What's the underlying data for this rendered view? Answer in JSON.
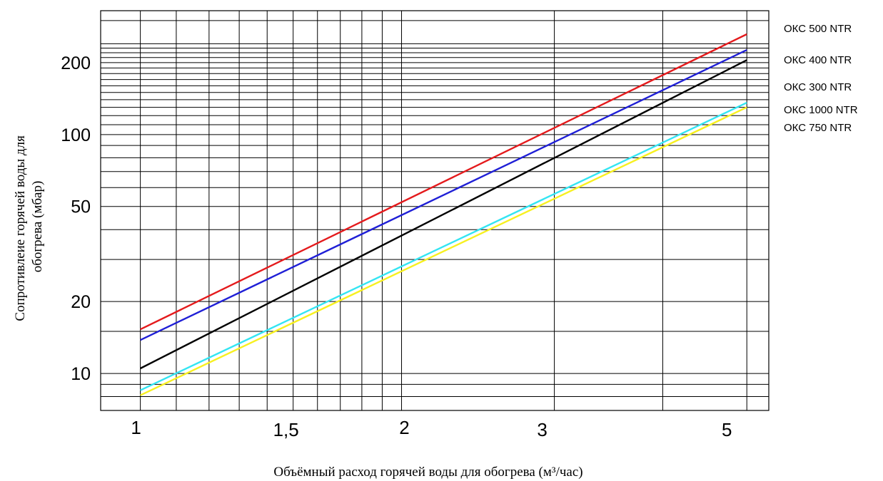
{
  "chart_data": {
    "type": "line",
    "x_scale": "log",
    "y_scale": "log",
    "xlim": [
      0.9,
      5.3
    ],
    "ylim": [
      7,
      330
    ],
    "xlabel": "Объёмный расход горячей воды для обогрева (м³/час)",
    "ylabel_lines": [
      "Сопротивлеие горячей воды для",
      "обогрева  (мбар)"
    ],
    "x_ticks": [
      {
        "value": 1,
        "label": "1"
      },
      {
        "value": 1.5,
        "label": "1,5"
      },
      {
        "value": 2,
        "label": "2"
      },
      {
        "value": 3,
        "label": "3"
      },
      {
        "value": 5,
        "label": "5"
      }
    ],
    "y_ticks": [
      {
        "value": 10,
        "label": "10"
      },
      {
        "value": 20,
        "label": "20"
      },
      {
        "value": 50,
        "label": "50"
      },
      {
        "value": 100,
        "label": "100"
      },
      {
        "value": 200,
        "label": "200"
      }
    ],
    "x_gridlines": [
      1,
      1.1,
      1.2,
      1.3,
      1.4,
      1.5,
      1.6,
      1.7,
      1.8,
      1.9,
      2,
      3,
      4,
      5
    ],
    "y_gridlines": [
      8,
      9,
      10,
      15,
      20,
      30,
      40,
      50,
      60,
      70,
      80,
      90,
      100,
      110,
      120,
      130,
      140,
      150,
      160,
      170,
      180,
      190,
      200,
      210,
      220,
      230,
      240,
      300
    ],
    "grid": true,
    "legend_position": "right",
    "series": [
      {
        "name": "ОКС 500 NTR",
        "color": "#e41a1c",
        "x": [
          1,
          5
        ],
        "y": [
          15.3,
          263
        ]
      },
      {
        "name": "ОКС 400 NTR",
        "color": "#1f1fd6",
        "x": [
          1,
          5
        ],
        "y": [
          13.8,
          226
        ]
      },
      {
        "name": "ОКС 300 NTR",
        "color": "#000000",
        "x": [
          1,
          5
        ],
        "y": [
          10.5,
          205
        ]
      },
      {
        "name": "ОКС 1000 NTR",
        "color": "#33e5f2",
        "x": [
          1,
          5
        ],
        "y": [
          8.5,
          136
        ]
      },
      {
        "name": "ОКС 750 NTR",
        "color": "#f7f020",
        "x": [
          1,
          5
        ],
        "y": [
          8.1,
          130
        ]
      }
    ]
  }
}
